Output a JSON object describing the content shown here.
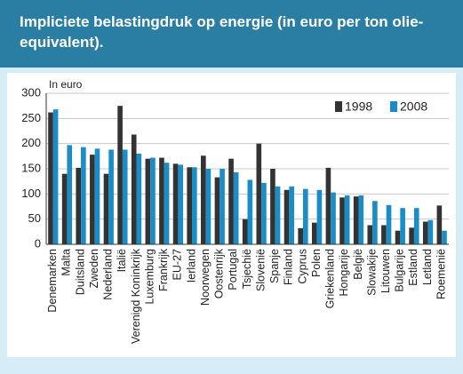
{
  "chart_data": {
    "type": "bar",
    "title": "Impliciete belastingdruk op energie (in euro per ton olie-equivalent).",
    "y_label": "In euro",
    "categories": [
      "Denemarken",
      "Malta",
      "Duitsland",
      "Zweden",
      "Nederland",
      "Italië",
      "Verenigd Koninkrijk",
      "Luxemburg",
      "Frankrijk",
      "EU-27",
      "Ierland",
      "Noorwegen",
      "Oostenrijk",
      "Portugal",
      "Tsjechië",
      "Slovenië",
      "Spanje",
      "Finland",
      "Cyprus",
      "Polen",
      "Griekenland",
      "Hongarije",
      "België",
      "Slowakije",
      "Litouwen",
      "Bulgarije",
      "Estland",
      "Letland",
      "Roemenië"
    ],
    "series": [
      {
        "name": "1998",
        "color": "#333333",
        "values": [
          262,
          140,
          152,
          178,
          140,
          275,
          218,
          170,
          172,
          160,
          153,
          176,
          133,
          170,
          50,
          200,
          150,
          108,
          32,
          43,
          152,
          93,
          95,
          38,
          38,
          27,
          33,
          45,
          77
        ]
      },
      {
        "name": "2008",
        "color": "#1b8dc6",
        "values": [
          268,
          197,
          193,
          190,
          188,
          188,
          180,
          172,
          162,
          158,
          153,
          150,
          150,
          143,
          128,
          122,
          115,
          115,
          110,
          108,
          103,
          97,
          97,
          86,
          78,
          72,
          72,
          48,
          27
        ]
      }
    ],
    "ylim": [
      0,
      300
    ],
    "yticks": [
      0,
      50,
      100,
      150,
      200,
      250,
      300
    ],
    "grid": true,
    "legend": "top-right"
  }
}
